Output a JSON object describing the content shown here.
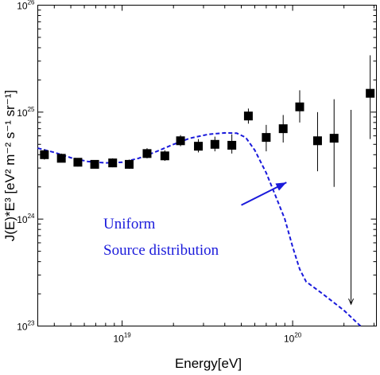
{
  "chart_data": {
    "type": "scatter",
    "xlabel": "Energy[eV]",
    "ylabel": "J(E)*E³ [eV² m⁻² s⁻¹ sr⁻¹]",
    "x_scale": "log",
    "y_scale": "log",
    "xlim": [
      3.2e+18,
      3.1e+20
    ],
    "ylim": [
      1e+23,
      1e+26
    ],
    "x_ticks": [
      {
        "value": 1e+19,
        "base": "10",
        "exp": "19"
      },
      {
        "value": 1e+20,
        "base": "10",
        "exp": "20"
      }
    ],
    "y_ticks": [
      {
        "value": 1e+23,
        "base": "10",
        "exp": "23"
      },
      {
        "value": 1e+24,
        "base": "10",
        "exp": "24"
      },
      {
        "value": 1e+25,
        "base": "10",
        "exp": "25"
      },
      {
        "value": 1e+26,
        "base": "10",
        "exp": "26"
      }
    ],
    "grid": false,
    "series": [
      {
        "kind": "points",
        "marker": "square",
        "color": "#000000",
        "points": [
          {
            "x": 3.5e+18,
            "y": 4e+24,
            "ylo": 3.6e+24,
            "yhi": 4.5e+24
          },
          {
            "x": 4.4e+18,
            "y": 3.7e+24,
            "ylo": 3.4e+24,
            "yhi": 4.1e+24
          },
          {
            "x": 5.5e+18,
            "y": 3.4e+24,
            "ylo": 3.1e+24,
            "yhi": 3.7e+24
          },
          {
            "x": 6.9e+18,
            "y": 3.25e+24,
            "ylo": 3e+24,
            "yhi": 3.55e+24
          },
          {
            "x": 8.8e+18,
            "y": 3.35e+24,
            "ylo": 3.05e+24,
            "yhi": 3.7e+24
          },
          {
            "x": 1.1e+19,
            "y": 3.25e+24,
            "ylo": 2.95e+24,
            "yhi": 3.6e+24
          },
          {
            "x": 1.4e+19,
            "y": 4.1e+24,
            "ylo": 3.7e+24,
            "yhi": 4.6e+24
          },
          {
            "x": 1.78e+19,
            "y": 3.9e+24,
            "ylo": 3.5e+24,
            "yhi": 4.4e+24
          },
          {
            "x": 2.2e+19,
            "y": 5.4e+24,
            "ylo": 4.8e+24,
            "yhi": 6.1e+24
          },
          {
            "x": 2.8e+19,
            "y": 4.8e+24,
            "ylo": 4.2e+24,
            "yhi": 5.6e+24
          },
          {
            "x": 3.5e+19,
            "y": 5e+24,
            "ylo": 4.3e+24,
            "yhi": 5.9e+24
          },
          {
            "x": 4.4e+19,
            "y": 4.9e+24,
            "ylo": 4.1e+24,
            "yhi": 6.2e+24
          },
          {
            "x": 5.5e+19,
            "y": 9.2e+24,
            "ylo": 7.8e+24,
            "yhi": 1.08e+25
          },
          {
            "x": 7e+19,
            "y": 5.8e+24,
            "ylo": 4.3e+24,
            "yhi": 7.6e+24
          },
          {
            "x": 8.8e+19,
            "y": 7e+24,
            "ylo": 5.2e+24,
            "yhi": 9.4e+24
          },
          {
            "x": 1.1e+20,
            "y": 1.12e+25,
            "ylo": 8e+24,
            "yhi": 1.6e+25
          },
          {
            "x": 1.4e+20,
            "y": 5.4e+24,
            "ylo": 2.8e+24,
            "yhi": 1e+25
          },
          {
            "x": 1.75e+20,
            "y": 5.7e+24,
            "ylo": 2e+24,
            "yhi": 1.32e+25
          },
          {
            "x": 2.85e+20,
            "y": 1.5e+25,
            "ylo": 5.6e+24,
            "yhi": 3.4e+25
          }
        ]
      },
      {
        "kind": "upper_limit",
        "color": "#000000",
        "x": 2.2e+20,
        "y_from": 1.05e+25,
        "y_to": 1.6e+23
      },
      {
        "kind": "line",
        "style": "dashed",
        "color": "#1a1adb",
        "x": [
          3.2e+18,
          4e+18,
          5e+18,
          6.3e+18,
          8e+18,
          1e+19,
          1.25e+19,
          1.6e+19,
          2e+19,
          2.5e+19,
          3.2e+19,
          4e+19,
          4.7e+19,
          5.3e+19,
          6e+19,
          7e+19,
          8e+19,
          9e+19,
          1e+20,
          1.1e+20,
          1.2e+20,
          1.5e+20,
          2e+20,
          2.5e+20
        ],
        "y": [
          4.6e+24,
          4.2e+24,
          3.75e+24,
          3.45e+24,
          3.35e+24,
          3.4e+24,
          3.7e+24,
          4.3e+24,
          5e+24,
          5.7e+24,
          6.2e+24,
          6.4e+24,
          6.35e+24,
          5.8e+24,
          4.4e+24,
          2.7e+24,
          1.6e+24,
          1e+24,
          5.5e+23,
          3.4e+23,
          2.6e+23,
          2e+23,
          1.4e+23,
          1e+23
        ]
      }
    ],
    "annotations": [
      {
        "lines": [
          "Uniform",
          "Source distribution"
        ],
        "color": "#1a1adb",
        "arrow_to": {
          "x": 9.2e+19,
          "y": 2.2e+24
        },
        "arrow_from": {
          "x": 5e+19,
          "y": 1.35e+24
        }
      }
    ]
  }
}
